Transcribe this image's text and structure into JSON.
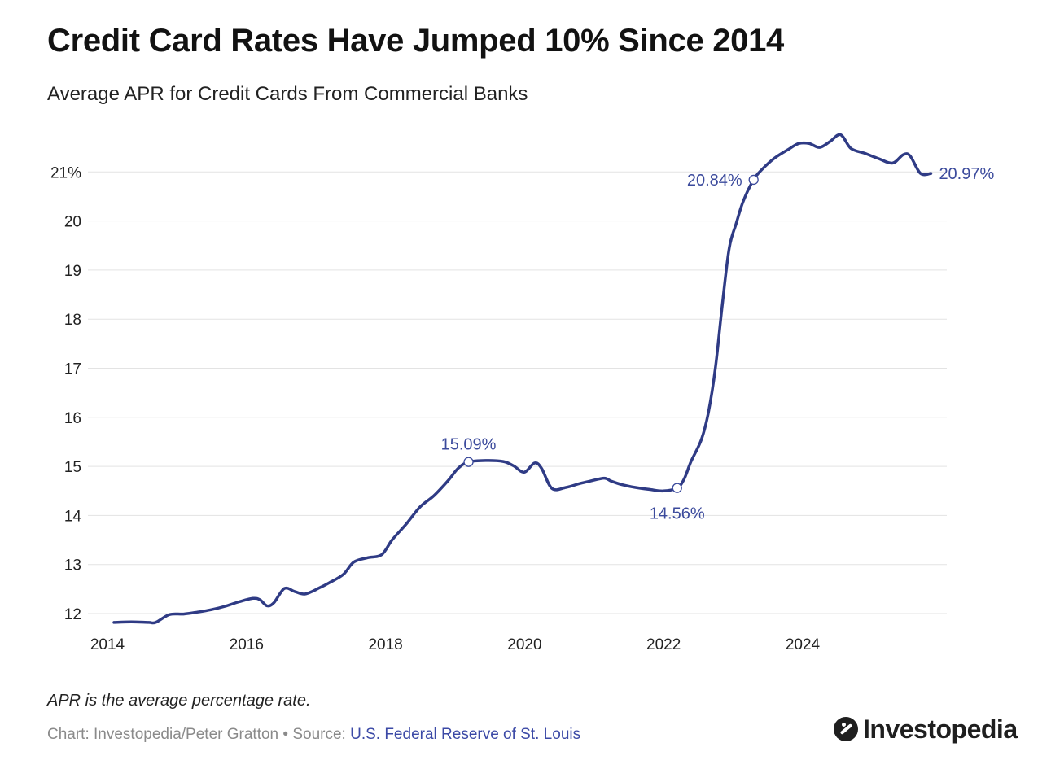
{
  "title": "Credit Card Rates Have Jumped 10% Since 2014",
  "subtitle": "Average APR for Credit Cards From Commercial Banks",
  "note": "APR is the average percentage rate.",
  "credits": {
    "chart_by": "Chart: Investopedia/Peter Gratton",
    "separator": "•",
    "source_label": "Source:",
    "source_name": "U.S. Federal Reserve of St. Louis"
  },
  "brand": "Investopedia",
  "colors": {
    "line": "#2f3b85",
    "annotation": "#3b4a9c",
    "grid": "#e3e3e3",
    "axis_text": "#222222"
  },
  "chart_data": {
    "type": "line",
    "title": "Credit Card Rates Have Jumped 10% Since 2014",
    "subtitle": "Average APR for Credit Cards From Commercial Banks",
    "xlabel": "",
    "ylabel": "",
    "xlim": [
      2014,
      2026
    ],
    "ylim": [
      11.8,
      22.0
    ],
    "x_ticks": [
      2014,
      2016,
      2018,
      2020,
      2022,
      2024
    ],
    "x_tick_labels": [
      "2014",
      "2016",
      "2018",
      "2020",
      "2022",
      "2024"
    ],
    "y_ticks": [
      12,
      13,
      14,
      15,
      16,
      17,
      18,
      19,
      20,
      21
    ],
    "y_tick_labels": [
      "12",
      "13",
      "14",
      "15",
      "16",
      "17",
      "18",
      "19",
      "20",
      "21%"
    ],
    "grid": true,
    "series": [
      {
        "name": "Average APR",
        "x": [
          2014.0,
          2014.25,
          2014.5,
          2014.6,
          2014.8,
          2015.0,
          2015.2,
          2015.4,
          2015.6,
          2015.8,
          2016.0,
          2016.1,
          2016.2,
          2016.3,
          2016.45,
          2016.6,
          2016.75,
          2016.95,
          2017.1,
          2017.3,
          2017.45,
          2017.65,
          2017.85,
          2018.0,
          2018.2,
          2018.4,
          2018.6,
          2018.8,
          2018.95,
          2019.1,
          2019.35,
          2019.6,
          2019.75,
          2019.9,
          2020.05,
          2020.15,
          2020.3,
          2020.5,
          2020.7,
          2020.85,
          2021.05,
          2021.15,
          2021.3,
          2021.5,
          2021.7,
          2021.9,
          2022.1,
          2022.2,
          2022.3,
          2022.45,
          2022.55,
          2022.65,
          2022.75,
          2022.85,
          2022.95,
          2023.05,
          2023.2,
          2023.32,
          2023.5,
          2023.7,
          2023.85,
          2024.0,
          2024.15,
          2024.3,
          2024.45,
          2024.6,
          2024.8,
          2025.0,
          2025.2,
          2025.35,
          2025.45,
          2025.6,
          2025.75
        ],
        "values": [
          11.82,
          11.83,
          11.82,
          11.82,
          11.98,
          11.99,
          12.03,
          12.08,
          12.15,
          12.24,
          12.31,
          12.28,
          12.16,
          12.22,
          12.51,
          12.45,
          12.4,
          12.52,
          12.63,
          12.8,
          13.05,
          13.14,
          13.2,
          13.5,
          13.82,
          14.17,
          14.4,
          14.7,
          14.96,
          15.09,
          15.12,
          15.1,
          15.01,
          14.88,
          15.07,
          14.96,
          14.55,
          14.57,
          14.65,
          14.7,
          14.76,
          14.7,
          14.63,
          14.57,
          14.53,
          14.5,
          14.56,
          14.74,
          15.1,
          15.55,
          16.1,
          17.0,
          18.3,
          19.45,
          19.95,
          20.4,
          20.84,
          21.05,
          21.28,
          21.46,
          21.58,
          21.58,
          21.5,
          21.62,
          21.76,
          21.48,
          21.38,
          21.27,
          21.18,
          21.35,
          21.33,
          20.97,
          20.97
        ]
      }
    ],
    "annotations": [
      {
        "label": "15.09%",
        "x": 2019.1,
        "y": 15.09,
        "position": "above"
      },
      {
        "label": "14.56%",
        "x": 2022.1,
        "y": 14.56,
        "position": "below"
      },
      {
        "label": "20.84%",
        "x": 2023.2,
        "y": 20.84,
        "position": "left"
      },
      {
        "label": "20.97%",
        "x": 2025.75,
        "y": 20.97,
        "position": "right"
      }
    ]
  }
}
